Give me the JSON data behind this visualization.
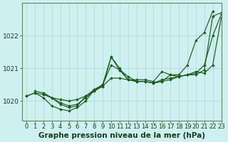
{
  "xlabel": "Graphe pression niveau de la mer (hPa)",
  "xlim": [
    -0.5,
    23
  ],
  "ylim": [
    1019.4,
    1023.0
  ],
  "yticks": [
    1020,
    1021,
    1022
  ],
  "xticks": [
    0,
    1,
    2,
    3,
    4,
    5,
    6,
    7,
    8,
    9,
    10,
    11,
    12,
    13,
    14,
    15,
    16,
    17,
    18,
    19,
    20,
    21,
    22,
    23
  ],
  "background_color": "#cff0f0",
  "grid_color": "#a8d8d8",
  "line_color": "#1a5c1a",
  "series": [
    {
      "x": [
        0,
        1,
        2,
        3,
        4,
        5,
        6,
        7,
        8,
        9,
        10,
        11,
        12,
        13,
        14,
        15,
        16,
        17,
        18,
        19,
        20,
        21,
        22
      ],
      "y": [
        1020.15,
        1020.25,
        1020.1,
        1019.85,
        1019.75,
        1019.7,
        1019.8,
        1020.0,
        1020.35,
        1020.45,
        1021.35,
        1021.0,
        1020.65,
        1020.65,
        1020.65,
        1020.6,
        1020.9,
        1020.8,
        1020.8,
        1021.1,
        1021.85,
        1022.1,
        1022.75
      ]
    },
    {
      "x": [
        0,
        1,
        2,
        3,
        4,
        5,
        6,
        7,
        8,
        9,
        10,
        11,
        12,
        13,
        14,
        15,
        16,
        17,
        18,
        19,
        20,
        21,
        22,
        23
      ],
      "y": [
        1020.15,
        1020.25,
        1020.2,
        1020.1,
        1020.05,
        1020.0,
        1020.05,
        1020.15,
        1020.3,
        1020.45,
        1020.7,
        1020.7,
        1020.65,
        1020.6,
        1020.6,
        1020.55,
        1020.65,
        1020.7,
        1020.75,
        1020.8,
        1020.9,
        1020.85,
        1021.1,
        1022.55
      ]
    },
    {
      "x": [
        1,
        2,
        3,
        4,
        5,
        6,
        7,
        8,
        9,
        10,
        11,
        12,
        13,
        14,
        15,
        16,
        17,
        18,
        19,
        20,
        21,
        22,
        23
      ],
      "y": [
        1020.3,
        1020.25,
        1020.1,
        1019.9,
        1019.8,
        1019.85,
        1020.15,
        1020.35,
        1020.5,
        1021.1,
        1020.95,
        1020.75,
        1020.6,
        1020.6,
        1020.55,
        1020.6,
        1020.65,
        1020.75,
        1020.8,
        1020.8,
        1020.95,
        1022.6,
        1022.7
      ]
    },
    {
      "x": [
        2,
        3,
        4,
        5,
        6,
        7,
        8,
        9,
        10,
        11,
        12,
        13,
        14,
        15,
        16,
        17,
        18,
        19,
        20,
        21,
        22,
        23
      ],
      "y": [
        1020.2,
        1020.1,
        1019.95,
        1019.85,
        1019.9,
        1020.1,
        1020.3,
        1020.5,
        1021.35,
        1020.95,
        1020.65,
        1020.6,
        1020.6,
        1020.55,
        1020.6,
        1020.8,
        1020.75,
        1020.8,
        1020.85,
        1021.1,
        1022.0,
        1022.65
      ]
    }
  ],
  "font_size_label": 7.5,
  "font_size_tick": 6.0,
  "marker": "D",
  "marker_size": 1.8
}
